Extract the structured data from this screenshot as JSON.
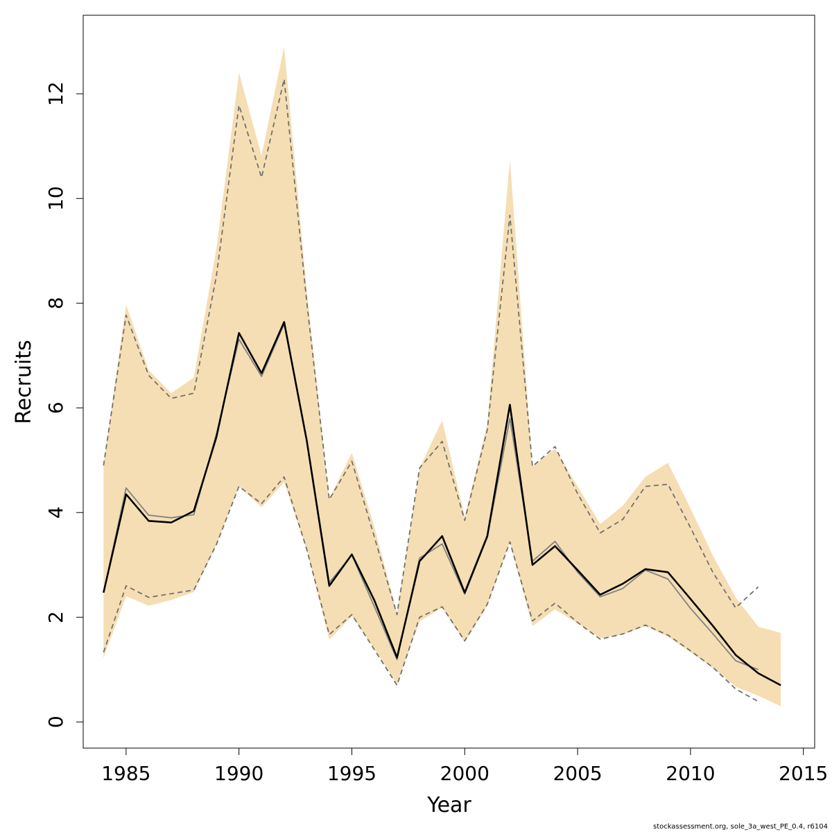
{
  "chart_data": {
    "type": "line",
    "title": "",
    "xlabel": "Year",
    "ylabel": "Recruits",
    "xlim": [
      1983.1,
      2015.5
    ],
    "ylim": [
      -0.5,
      13.5
    ],
    "xticks": [
      1985,
      1990,
      1995,
      2000,
      2005,
      2010,
      2015
    ],
    "xtick_labels": [
      "1985",
      "1990",
      "1995",
      "2000",
      "2005",
      "2010",
      "2015"
    ],
    "yticks": [
      0,
      2,
      4,
      6,
      8,
      10,
      12
    ],
    "ytick_labels": [
      "0",
      "2",
      "4",
      "6",
      "8",
      "10",
      "12"
    ],
    "grid": false,
    "legend": "none",
    "colors": {
      "band": "#f5deb3",
      "estimate": "#000000",
      "previous": "#808080",
      "previous_ci": "#707070"
    },
    "band": {
      "name": "Confidence interval",
      "x": [
        1984,
        1985,
        1986,
        1987,
        1988,
        1989,
        1990,
        1991,
        1992,
        1993,
        1994,
        1995,
        1996,
        1997,
        1998,
        1999,
        2000,
        2001,
        2002,
        2003,
        2004,
        2005,
        2006,
        2007,
        2008,
        2009,
        2010,
        2011,
        2012,
        2013,
        2014
      ],
      "lower": [
        1.22,
        2.4,
        2.22,
        2.33,
        2.48,
        3.38,
        4.5,
        4.1,
        4.58,
        3.28,
        1.57,
        2.02,
        1.4,
        0.72,
        1.92,
        2.18,
        1.52,
        2.22,
        3.42,
        1.83,
        2.15,
        1.88,
        1.6,
        1.67,
        1.83,
        1.63,
        1.33,
        1.03,
        0.67,
        0.5,
        0.3
      ],
      "upper": [
        4.93,
        7.97,
        6.72,
        6.28,
        6.58,
        9.04,
        12.4,
        10.82,
        12.9,
        8.25,
        4.27,
        5.14,
        3.72,
        2.08,
        4.85,
        5.76,
        3.92,
        5.7,
        10.75,
        4.88,
        5.22,
        4.5,
        3.78,
        4.13,
        4.68,
        4.95,
        4.08,
        3.17,
        2.38,
        1.82,
        1.7
      ]
    },
    "series": [
      {
        "name": "Estimate",
        "style": "solid-bold",
        "x": [
          1984,
          1985,
          1986,
          1987,
          1988,
          1989,
          1990,
          1991,
          1992,
          1993,
          1994,
          1995,
          1996,
          1997,
          1998,
          1999,
          2000,
          2001,
          2002,
          2003,
          2004,
          2005,
          2006,
          2007,
          2008,
          2009,
          2010,
          2011,
          2012,
          2013,
          2014
        ],
        "values": [
          2.47,
          4.35,
          3.84,
          3.81,
          4.03,
          5.44,
          7.43,
          6.66,
          7.64,
          5.38,
          2.6,
          3.2,
          2.32,
          1.23,
          3.07,
          3.55,
          2.47,
          3.55,
          6.06,
          3.0,
          3.36,
          2.9,
          2.43,
          2.64,
          2.92,
          2.86,
          2.35,
          1.83,
          1.28,
          0.93,
          0.7
        ]
      },
      {
        "name": "Previous assessment",
        "style": "solid-thin",
        "x": [
          1984,
          1985,
          1986,
          1987,
          1988,
          1989,
          1990,
          1991,
          1992,
          1993,
          1994,
          1995,
          1996,
          1997,
          1998,
          1999,
          2000,
          2001,
          2002,
          2003,
          2004,
          2005,
          2006,
          2007,
          2008,
          2009,
          2010,
          2011,
          2012,
          2013
        ],
        "values": [
          2.47,
          4.47,
          3.95,
          3.9,
          3.96,
          5.5,
          7.31,
          6.6,
          7.6,
          5.4,
          2.66,
          3.19,
          2.2,
          1.19,
          3.13,
          3.4,
          2.44,
          3.53,
          5.8,
          3.07,
          3.45,
          2.86,
          2.39,
          2.55,
          2.9,
          2.73,
          2.17,
          1.68,
          1.17,
          1.0
        ]
      },
      {
        "name": "Previous upper CI",
        "style": "dashed",
        "x": [
          1984,
          1985,
          1986,
          1987,
          1988,
          1989,
          1990,
          1991,
          1992,
          1993,
          1994,
          1995,
          1996,
          1997,
          1998,
          1999,
          2000,
          2001,
          2002,
          2003,
          2004,
          2005,
          2006,
          2007,
          2008,
          2009,
          2010,
          2011,
          2012,
          2013
        ],
        "values": [
          4.9,
          7.77,
          6.62,
          6.18,
          6.28,
          8.52,
          11.78,
          10.4,
          12.28,
          8.03,
          4.25,
          4.98,
          3.53,
          2.05,
          4.85,
          5.36,
          3.85,
          5.58,
          9.68,
          4.88,
          5.26,
          4.36,
          3.61,
          3.87,
          4.5,
          4.54,
          3.71,
          2.85,
          2.18,
          2.58
        ]
      },
      {
        "name": "Previous lower CI",
        "style": "dashed",
        "x": [
          1984,
          1985,
          1986,
          1987,
          1988,
          1989,
          1990,
          1991,
          1992,
          1993,
          1994,
          1995,
          1996,
          1997,
          1998,
          1999,
          2000,
          2001,
          2002,
          2003,
          2004,
          2005,
          2006,
          2007,
          2008,
          2009,
          2010,
          2011,
          2012,
          2013
        ],
        "values": [
          1.33,
          2.6,
          2.38,
          2.45,
          2.52,
          3.39,
          4.5,
          4.17,
          4.68,
          3.3,
          1.67,
          2.05,
          1.38,
          0.7,
          2.0,
          2.2,
          1.55,
          2.25,
          3.44,
          1.93,
          2.27,
          1.9,
          1.58,
          1.68,
          1.85,
          1.66,
          1.36,
          1.04,
          0.63,
          0.39
        ]
      }
    ]
  },
  "footer": {
    "credit": "stockassessment.org, sole_3a_west_PE_0.4, r6104"
  }
}
